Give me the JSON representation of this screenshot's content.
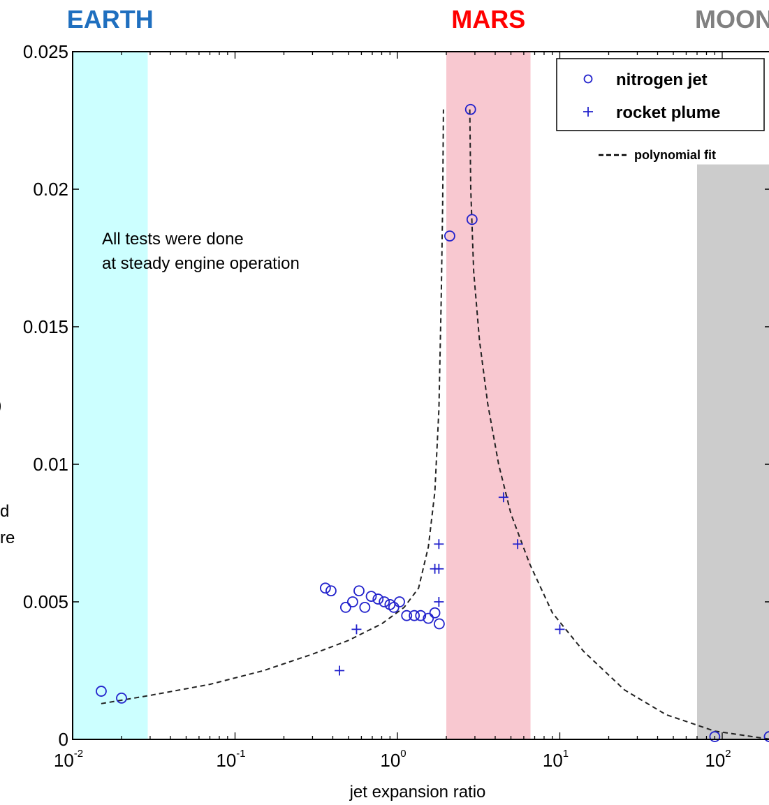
{
  "chart_data": {
    "type": "scatter",
    "xlabel": "jet expansion ratio",
    "ylabel": "",
    "x_scale": "log",
    "xlim": [
      0.01,
      200
    ],
    "ylim": [
      0,
      0.025
    ],
    "x_ticks": [
      {
        "base": "10",
        "exp": "-2",
        "value": 0.01
      },
      {
        "base": "10",
        "exp": "-1",
        "value": 0.1
      },
      {
        "base": "10",
        "exp": "0",
        "value": 1
      },
      {
        "base": "10",
        "exp": "1",
        "value": 10
      },
      {
        "base": "10",
        "exp": "2",
        "value": 100
      }
    ],
    "y_ticks": [
      {
        "label": "0",
        "value": 0
      },
      {
        "label": "0.005",
        "value": 0.005
      },
      {
        "label": "0.01",
        "value": 0.01
      },
      {
        "label": "0.015",
        "value": 0.015
      },
      {
        "label": "0.02",
        "value": 0.02
      },
      {
        "label": "0.025",
        "value": 0.025
      }
    ],
    "regions": [
      {
        "name": "EARTH",
        "x_range": [
          0.01,
          0.029
        ],
        "color": "#ccffff",
        "title_color": "#1f6fbf"
      },
      {
        "name": "MARS",
        "x_range": [
          2.0,
          6.6
        ],
        "color": "#f8c8d0",
        "title_color": "#ff0000"
      },
      {
        "name": "MOON",
        "x_range": [
          70,
          200
        ],
        "color": "#cccccc",
        "title_color": "#808080",
        "y_top": 0.0209
      }
    ],
    "series": [
      {
        "name": "nitrogen jet",
        "marker": "circle",
        "color": "#2222cc",
        "points": [
          [
            0.015,
            0.00175
          ],
          [
            0.02,
            0.0015
          ],
          [
            0.36,
            0.0055
          ],
          [
            0.39,
            0.0054
          ],
          [
            0.48,
            0.0048
          ],
          [
            0.53,
            0.005
          ],
          [
            0.58,
            0.0054
          ],
          [
            0.63,
            0.0048
          ],
          [
            0.69,
            0.0052
          ],
          [
            0.76,
            0.0051
          ],
          [
            0.83,
            0.005
          ],
          [
            0.9,
            0.0049
          ],
          [
            0.95,
            0.0048
          ],
          [
            1.03,
            0.005
          ],
          [
            1.14,
            0.0045
          ],
          [
            1.27,
            0.0045
          ],
          [
            1.39,
            0.0045
          ],
          [
            1.55,
            0.0044
          ],
          [
            1.7,
            0.0046
          ],
          [
            1.81,
            0.0042
          ],
          [
            2.1,
            0.0183
          ],
          [
            2.82,
            0.0229
          ],
          [
            2.88,
            0.0189
          ],
          [
            90,
            0.0001
          ],
          [
            195,
            0.0001
          ]
        ]
      },
      {
        "name": "rocket plume",
        "marker": "plus",
        "color": "#2222cc",
        "points": [
          [
            0.44,
            0.0025
          ],
          [
            0.56,
            0.004
          ],
          [
            1.7,
            0.0062
          ],
          [
            1.8,
            0.0062
          ],
          [
            1.8,
            0.0071
          ],
          [
            1.8,
            0.005
          ],
          [
            4.5,
            0.0088
          ],
          [
            5.5,
            0.0071
          ],
          [
            10.0,
            0.004
          ]
        ]
      }
    ],
    "fit": {
      "name": "polynomial fit",
      "left": [
        [
          0.015,
          0.0013
        ],
        [
          0.03,
          0.0016
        ],
        [
          0.07,
          0.002
        ],
        [
          0.15,
          0.0025
        ],
        [
          0.3,
          0.0031
        ],
        [
          0.5,
          0.0036
        ],
        [
          0.8,
          0.0042
        ],
        [
          1.1,
          0.0048
        ],
        [
          1.35,
          0.0055
        ],
        [
          1.55,
          0.007
        ],
        [
          1.7,
          0.009
        ],
        [
          1.8,
          0.012
        ],
        [
          1.86,
          0.016
        ],
        [
          1.9,
          0.0195
        ],
        [
          1.92,
          0.0229
        ]
      ],
      "right": [
        [
          2.79,
          0.0229
        ],
        [
          2.83,
          0.02
        ],
        [
          2.95,
          0.017
        ],
        [
          3.2,
          0.0145
        ],
        [
          3.6,
          0.0122
        ],
        [
          4.2,
          0.01
        ],
        [
          5.0,
          0.0082
        ],
        [
          6.5,
          0.0064
        ],
        [
          9.0,
          0.0046
        ],
        [
          14,
          0.0032
        ],
        [
          25,
          0.0018
        ],
        [
          45,
          0.0009
        ],
        [
          90,
          0.0003
        ],
        [
          200,
          0.0
        ]
      ]
    },
    "legend": {
      "position": "top-right"
    },
    "annotation": {
      "line1": "All tests were done",
      "line2": "at steady engine operation"
    },
    "cropped_left_text": {
      "line1": "d",
      "line2": "re"
    }
  }
}
